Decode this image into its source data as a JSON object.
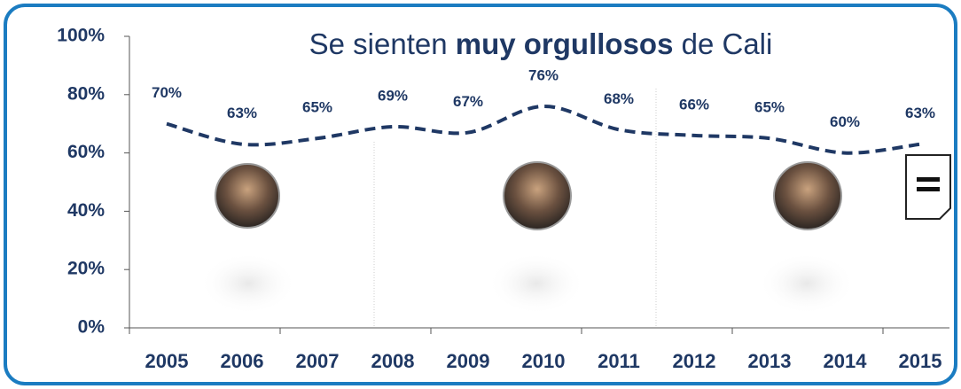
{
  "chart_data": {
    "type": "line",
    "title": [
      "Se sienten",
      "muy orgullosos",
      "de  Cali"
    ],
    "categories": [
      "2005",
      "2006",
      "2007",
      "2008",
      "2009",
      "2010",
      "2011",
      "2012",
      "2013",
      "2014",
      "2015"
    ],
    "series": [
      {
        "name": "Muy orgullosos",
        "color": "#1f3864",
        "values": [
          70,
          63,
          65,
          69,
          67,
          76,
          68,
          66,
          65,
          60,
          63
        ],
        "value_labels": [
          "70%",
          "63%",
          "65%",
          "69%",
          "67%",
          "76%",
          "68%",
          "66%",
          "65%",
          "60%",
          "63%"
        ]
      }
    ],
    "ylim": [
      0,
      100
    ],
    "yticks": [
      {
        "value": 0,
        "label": "0%"
      },
      {
        "value": 20,
        "label": "20%"
      },
      {
        "value": 40,
        "label": "40%"
      },
      {
        "value": 60,
        "label": "60%"
      },
      {
        "value": 80,
        "label": "80%"
      },
      {
        "value": 100,
        "label": "100%"
      }
    ],
    "grid": false
  }
}
